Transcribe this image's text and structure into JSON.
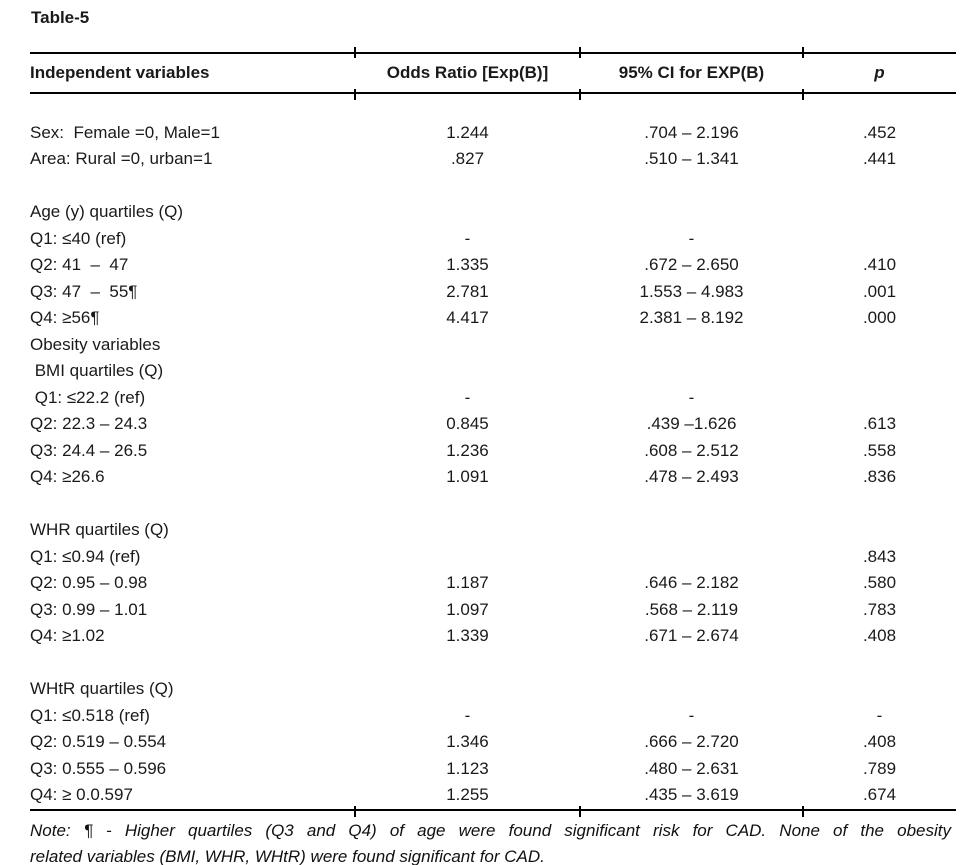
{
  "title": "Table-5",
  "table": {
    "columns": {
      "label": "Independent variables",
      "odds_ratio": "Odds Ratio [Exp(B)]",
      "ci": "95% CI for EXP(B)",
      "p": "p"
    },
    "rows": [
      {
        "label": "",
        "or": "",
        "ci": "",
        "p": ""
      },
      {
        "label": "Sex:  Female =0, Male=1",
        "or": "1.244",
        "ci": ".704 – 2.196",
        "p": ".452"
      },
      {
        "label": "Area: Rural =0, urban=1",
        "or": ".827",
        "ci": ".510 – 1.341",
        "p": ".441"
      },
      {
        "label": "",
        "or": "",
        "ci": "",
        "p": ""
      },
      {
        "label": "Age (y) quartiles (Q)",
        "or": "",
        "ci": "",
        "p": ""
      },
      {
        "label": "Q1: ≤40 (ref)",
        "or": "-",
        "ci": "-",
        "p": ""
      },
      {
        "label": "Q2: 41  –  47",
        "or": "1.335",
        "ci": ".672 – 2.650",
        "p": ".410"
      },
      {
        "label": "Q3: 47  –  55¶",
        "or": "2.781",
        "ci": "1.553 – 4.983",
        "p": ".001"
      },
      {
        "label": "Q4: ≥56¶",
        "or": "4.417",
        "ci": "2.381 – 8.192",
        "p": ".000"
      },
      {
        "label": "Obesity variables",
        "or": "",
        "ci": "",
        "p": ""
      },
      {
        "label": " BMI quartiles (Q)",
        "or": "",
        "ci": "",
        "p": ""
      },
      {
        "label": " Q1: ≤22.2 (ref)",
        "or": "-",
        "ci": "-",
        "p": ""
      },
      {
        "label": "Q2: 22.3 – 24.3",
        "or": "0.845",
        "ci": ".439 –1.626",
        "p": ".613"
      },
      {
        "label": "Q3: 24.4 – 26.5",
        "or": "1.236",
        "ci": ".608 – 2.512",
        "p": ".558"
      },
      {
        "label": "Q4: ≥26.6",
        "or": "1.091",
        "ci": ".478 – 2.493",
        "p": ".836"
      },
      {
        "label": "",
        "or": "",
        "ci": "",
        "p": ""
      },
      {
        "label": "WHR quartiles (Q)",
        "or": "",
        "ci": "",
        "p": ""
      },
      {
        "label": "Q1: ≤0.94 (ref)",
        "or": "",
        "ci": "",
        "p": ".843"
      },
      {
        "label": "Q2: 0.95 – 0.98",
        "or": "1.187",
        "ci": ".646 – 2.182",
        "p": ".580"
      },
      {
        "label": "Q3: 0.99 – 1.01",
        "or": "1.097",
        "ci": ".568 – 2.119",
        "p": ".783"
      },
      {
        "label": "Q4: ≥1.02",
        "or": "1.339",
        "ci": ".671 – 2.674",
        "p": ".408"
      },
      {
        "label": "",
        "or": "",
        "ci": "",
        "p": ""
      },
      {
        "label": "WHtR quartiles (Q)",
        "or": "",
        "ci": "",
        "p": ""
      },
      {
        "label": "Q1: ≤0.518 (ref)",
        "or": "-",
        "ci": "-",
        "p": "-"
      },
      {
        "label": "Q2: 0.519 – 0.554",
        "or": "1.346",
        "ci": ".666 – 2.720",
        "p": ".408"
      },
      {
        "label": "Q3: 0.555 – 0.596",
        "or": "1.123",
        "ci": ".480 – 2.631",
        "p": ".789"
      },
      {
        "label": "Q4: ≥ 0.0.597",
        "or": "1.255",
        "ci": ".435 – 3.619",
        "p": ".674"
      }
    ]
  },
  "note": {
    "line1": "Note: ¶ - Higher quartiles (Q3 and Q4) of age were found significant risk for CAD. None of the obesity",
    "line2": "related variables (BMI, WHR, WHtR) were found significant for CAD."
  },
  "colors": {
    "text": "#1a1a1a",
    "rule": "#000000",
    "background": "#ffffff"
  }
}
